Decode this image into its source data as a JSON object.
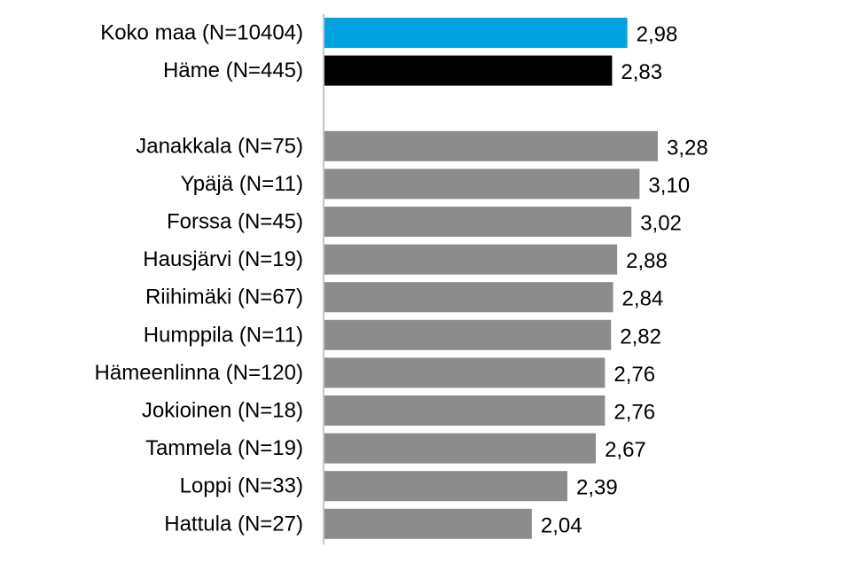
{
  "chart_data": {
    "type": "bar",
    "orientation": "horizontal",
    "title": "",
    "xlabel": "",
    "ylabel": "",
    "xlim": [
      0,
      3.28
    ],
    "grid": false,
    "legend": "none",
    "categories": [
      "Koko maa (N=10404)",
      "Häme (N=445)",
      "",
      "Janakkala (N=75)",
      "Ypäjä (N=11)",
      "Forssa (N=45)",
      "Hausjärvi (N=19)",
      "Riihimäki (N=67)",
      "Humppila (N=11)",
      "Hämeenlinna (N=120)",
      "Jokioinen (N=18)",
      "Tammela (N=19)",
      "Loppi (N=33)",
      "Hattula (N=27)"
    ],
    "values": [
      2.98,
      2.83,
      null,
      3.28,
      3.1,
      3.02,
      2.88,
      2.84,
      2.82,
      2.76,
      2.76,
      2.67,
      2.39,
      2.04
    ],
    "value_labels": [
      "2,98",
      "2,83",
      "",
      "3,28",
      "3,10",
      "3,02",
      "2,88",
      "2,84",
      "2,82",
      "2,76",
      "2,76",
      "2,67",
      "2,39",
      "2,04"
    ],
    "colors": [
      "#00A2DF",
      "#000000",
      "",
      "#8C8C8C",
      "#8C8C8C",
      "#8C8C8C",
      "#8C8C8C",
      "#8C8C8C",
      "#8C8C8C",
      "#8C8C8C",
      "#8C8C8C",
      "#8C8C8C",
      "#8C8C8C",
      "#8C8C8C"
    ]
  }
}
